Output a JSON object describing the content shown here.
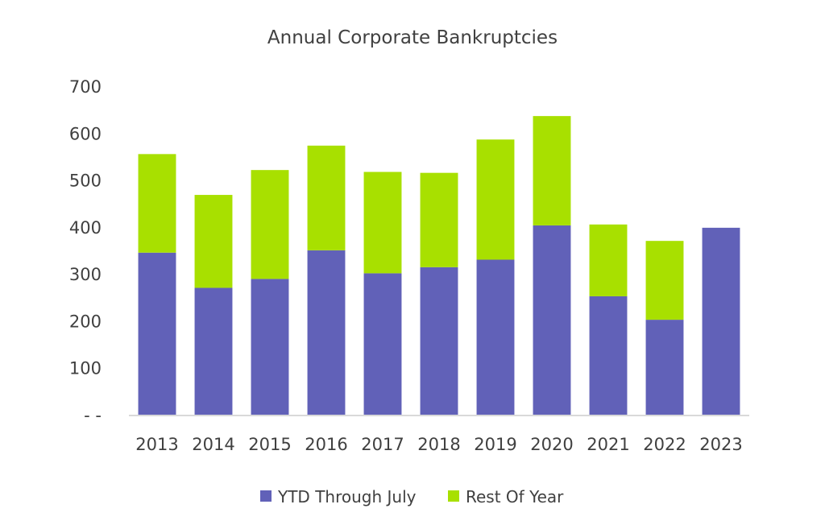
{
  "chart_data": {
    "type": "bar",
    "stacked": true,
    "title": "Annual Corporate Bankruptcies",
    "xlabel": "",
    "ylabel": "",
    "categories": [
      "2013",
      "2014",
      "2015",
      "2016",
      "2017",
      "2018",
      "2019",
      "2020",
      "2021",
      "2022",
      "2023"
    ],
    "series": [
      {
        "name": "YTD Through July",
        "color": "#6161b8",
        "values": [
          347,
          272,
          291,
          352,
          303,
          316,
          332,
          405,
          254,
          204,
          400
        ]
      },
      {
        "name": "Rest Of Year",
        "color": "#a8e000",
        "values": [
          210,
          198,
          232,
          223,
          216,
          201,
          256,
          233,
          153,
          168,
          0
        ]
      }
    ],
    "ylim": [
      0,
      700
    ],
    "yticks": [
      0,
      100,
      200,
      300,
      400,
      500,
      600,
      700
    ],
    "ytick_labels": [
      "- -",
      "100",
      "200",
      "300",
      "400",
      "500",
      "600",
      "700"
    ],
    "grid": false,
    "legend_position": "bottom"
  }
}
